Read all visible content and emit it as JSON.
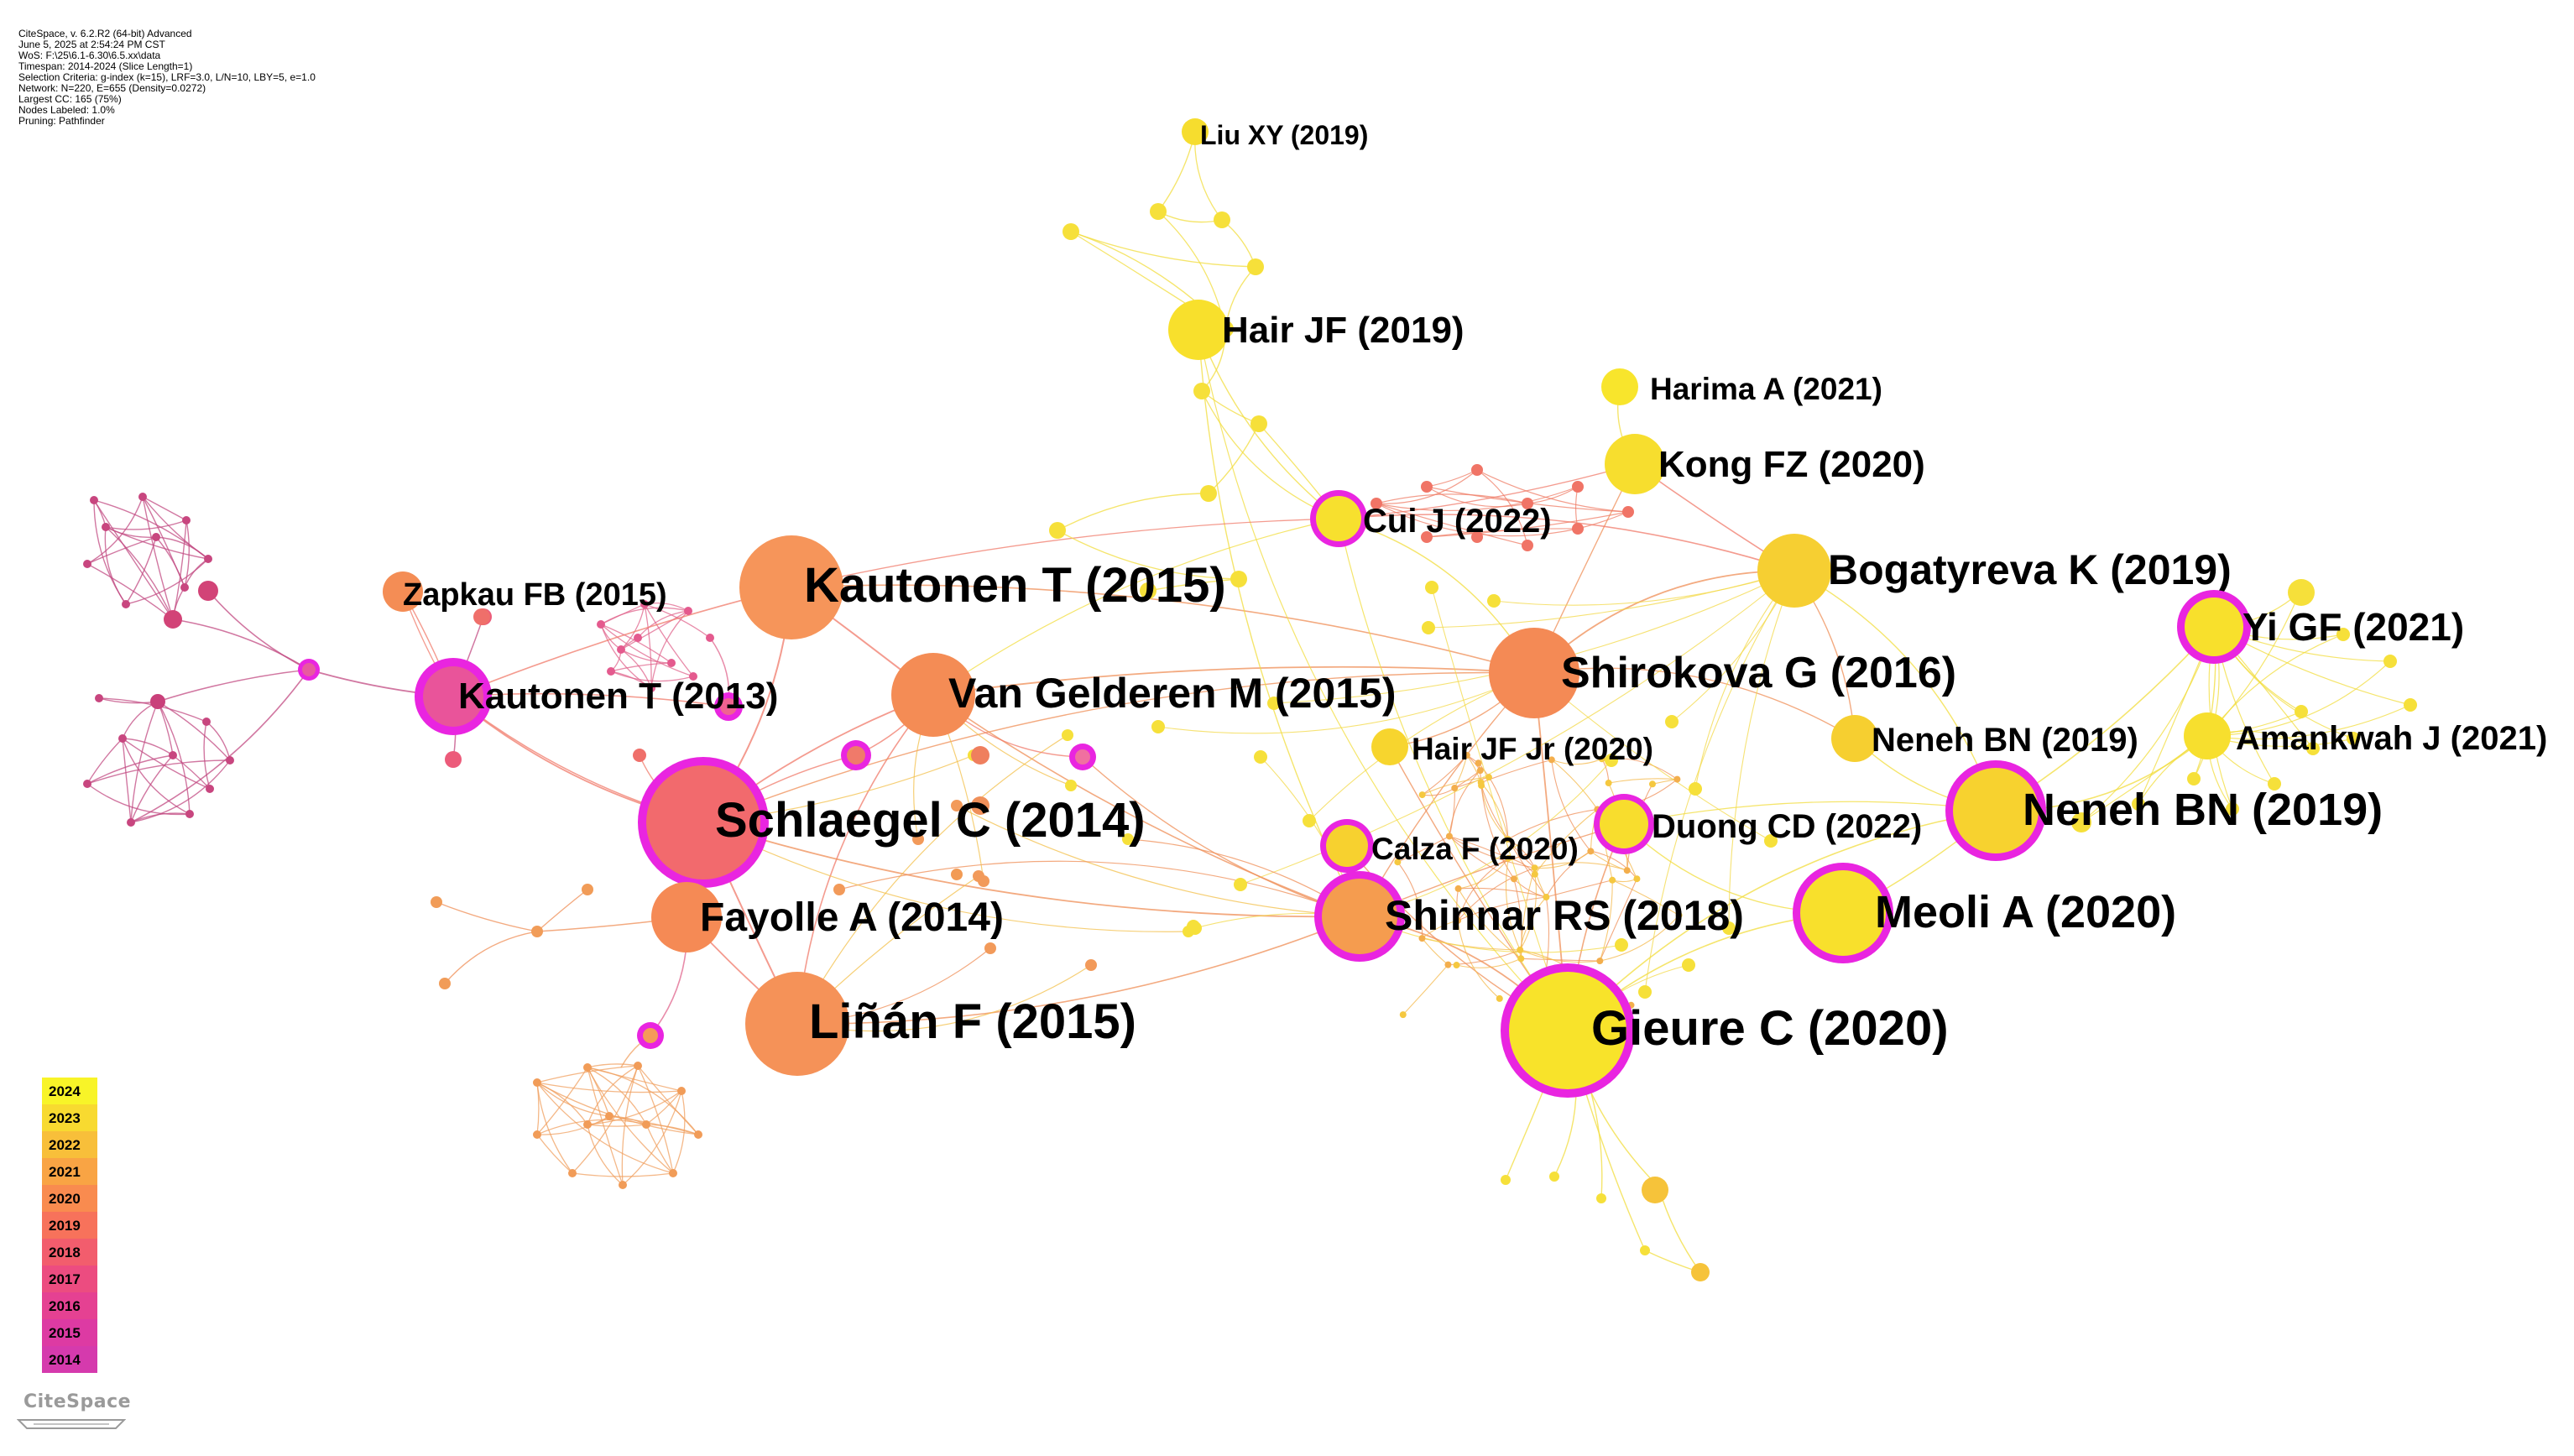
{
  "header_info": [
    "CiteSpace, v. 6.2.R2 (64-bit) Advanced",
    "June 5, 2025 at 2:54:24 PM CST",
    "WoS: F:\\25\\6.1-6.30\\6.5.xx\\data",
    "Timespan: 2014-2024 (Slice Length=1)",
    "Selection Criteria: g-index (k=15), LRF=3.0, L/N=10, LBY=5, e=1.0",
    "Network: N=220, E=655 (Density=0.0272)",
    "Largest CC: 165 (75%)",
    "Nodes Labeled: 1.0%",
    "Pruning: Pathfinder"
  ],
  "logo_text": "CiteSpace",
  "legend": {
    "years": [
      "2024",
      "2023",
      "2022",
      "2021",
      "2020",
      "2019",
      "2018",
      "2017",
      "2016",
      "2015",
      "2014"
    ],
    "colors": [
      "#f8f428",
      "#f8da30",
      "#f8bf3a",
      "#f9a444",
      "#f98b4f",
      "#f7725b",
      "#f25d6d",
      "#ec4c80",
      "#e54192",
      "#dd3aa3",
      "#d53aad"
    ]
  },
  "labeled_nodes": [
    {
      "id": "liu_xy_2019",
      "label": "Liu XY (2019)",
      "year": 2024
    },
    {
      "id": "hair_jf_2019",
      "label": "Hair JF (2019)",
      "year": 2024
    },
    {
      "id": "harima_a_2021",
      "label": "Harima A (2021)",
      "year": 2024
    },
    {
      "id": "kong_fz_2020",
      "label": "Kong FZ (2020)",
      "year": 2024
    },
    {
      "id": "cui_j_2022",
      "label": "Cui J (2022)",
      "year": 2024,
      "burst": true
    },
    {
      "id": "bogatyreva_k_2019",
      "label": "Bogatyreva K (2019)",
      "year": 2023
    },
    {
      "id": "yi_gf_2021",
      "label": "Yi GF (2021)",
      "year": 2024,
      "burst": true
    },
    {
      "id": "zapkau_fb_2015",
      "label": "Zapkau FB (2015)",
      "year": 2019
    },
    {
      "id": "kautonen_t_2015",
      "label": "Kautonen T (2015)",
      "year": 2020
    },
    {
      "id": "kautonen_t_2013",
      "label": "Kautonen T (2013)",
      "year": 2016,
      "burst": true
    },
    {
      "id": "van_gelderen_m_2015",
      "label": "Van Gelderen M (2015)",
      "year": 2020
    },
    {
      "id": "shirokova_g_2016",
      "label": "Shirokova G (2016)",
      "year": 2020
    },
    {
      "id": "hair_jf_jr_2020",
      "label": "Hair JF Jr (2020)",
      "year": 2023
    },
    {
      "id": "neneh_bn_2019_a",
      "label": "Neneh BN (2019)",
      "year": 2023
    },
    {
      "id": "amankwah_j_2021",
      "label": "Amankwah J (2021)",
      "year": 2024
    },
    {
      "id": "schlaegel_c_2014",
      "label": "Schlaegel C (2014)",
      "year": 2019,
      "burst": true
    },
    {
      "id": "duong_cd_2022",
      "label": "Duong CD (2022)",
      "year": 2024,
      "burst": true
    },
    {
      "id": "neneh_bn_2019_b",
      "label": "Neneh BN (2019)",
      "year": 2023,
      "burst": true
    },
    {
      "id": "calza_f_2020",
      "label": "Calza F (2020)",
      "year": 2023,
      "burst": true
    },
    {
      "id": "fayolle_a_2014",
      "label": "Fayolle A (2014)",
      "year": 2020
    },
    {
      "id": "shinnar_rs_2018",
      "label": "Shinnar RS (2018)",
      "year": 2020,
      "burst": true
    },
    {
      "id": "meoli_a_2020",
      "label": "Meoli A (2020)",
      "year": 2024,
      "burst": true
    },
    {
      "id": "linan_f_2015",
      "label": "Liñán F (2015)",
      "year": 2020
    },
    {
      "id": "gieure_c_2020",
      "label": "Gieure C (2020)",
      "year": 2024,
      "burst": true
    }
  ],
  "colors": {
    "burst_ring": "#e925e0",
    "edge_old": "#c2457a",
    "edge_mid": "#ee8a55",
    "edge_new": "#f2d33a"
  }
}
